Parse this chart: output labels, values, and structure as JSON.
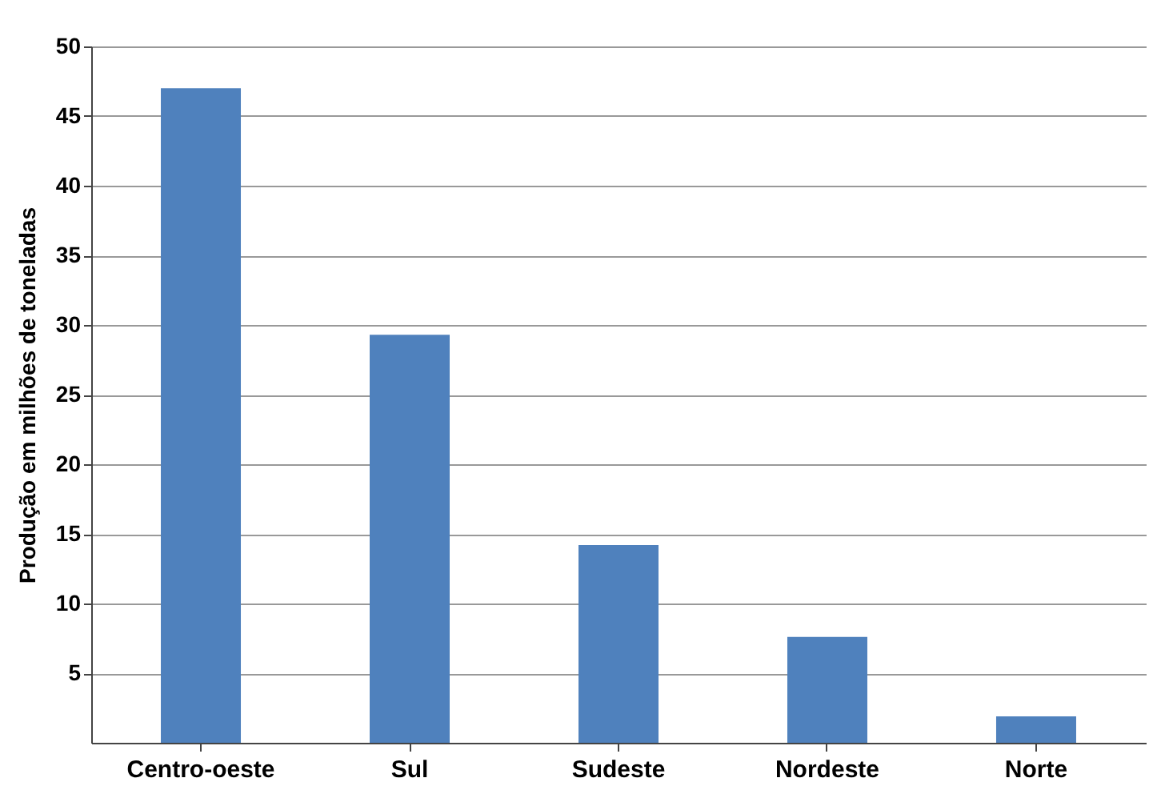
{
  "chart_data": {
    "type": "bar",
    "ylabel": "Produção em milhões de toneladas",
    "categories": [
      "Centro-oeste",
      "Sul",
      "Sudeste",
      "Nordeste",
      "Norte"
    ],
    "values": [
      47.0,
      29.3,
      14.2,
      7.6,
      1.9
    ],
    "color": "#4f81bd",
    "ylim": [
      0,
      50
    ],
    "yticks": [
      5,
      10,
      15,
      20,
      25,
      30,
      35,
      40,
      45,
      50
    ],
    "grid": "y"
  }
}
